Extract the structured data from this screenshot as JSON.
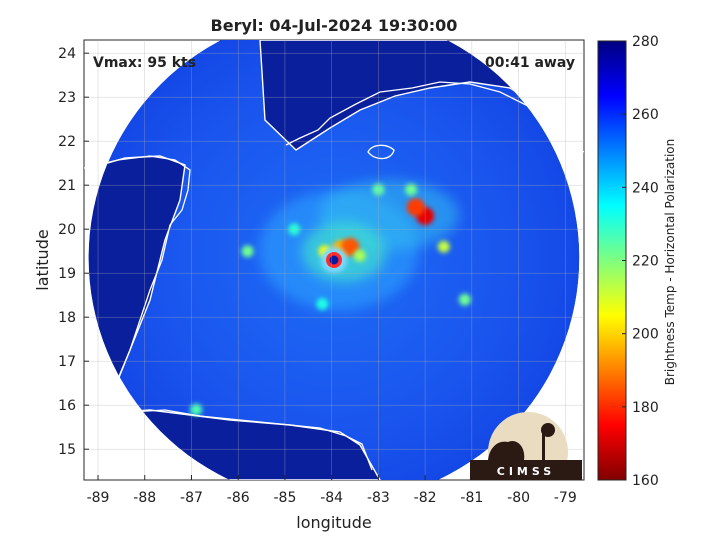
{
  "chart_data": {
    "type": "heatmap",
    "title": "Beryl: 04-Jul-2024 19:30:00",
    "xlabel": "longitude",
    "ylabel": "latitude",
    "xlim": [
      -89.3,
      -78.6
    ],
    "ylim": [
      14.3,
      24.3
    ],
    "x_ticks": [
      -89,
      -88,
      -87,
      -86,
      -85,
      -84,
      -83,
      -82,
      -81,
      -80,
      -79
    ],
    "y_ticks": [
      15,
      16,
      17,
      18,
      19,
      20,
      21,
      22,
      23,
      24
    ],
    "grid": true,
    "annotations": {
      "vmax": "Vmax: 95 kts",
      "offset": "00:41 away"
    },
    "colorbar": {
      "label": "Brightness Temp - Horizontal Polarization",
      "range": [
        160,
        280
      ],
      "ticks": [
        160,
        180,
        200,
        220,
        240,
        260,
        280
      ],
      "colormap": "jet"
    },
    "swath": {
      "center_lon": -83.95,
      "center_lat": 19.35,
      "radius_deg": 5.25
    },
    "storm_center": {
      "lon": -83.95,
      "lat": 19.3
    },
    "features": [
      {
        "lon": -83.8,
        "lat": 19.55,
        "tb": 196
      },
      {
        "lon": -83.6,
        "lat": 19.6,
        "tb": 185
      },
      {
        "lon": -84.15,
        "lat": 19.5,
        "tb": 205
      },
      {
        "lon": -83.4,
        "lat": 19.4,
        "tb": 215
      },
      {
        "lon": -82.0,
        "lat": 20.3,
        "tb": 172
      },
      {
        "lon": -82.2,
        "lat": 20.5,
        "tb": 182
      },
      {
        "lon": -81.6,
        "lat": 19.6,
        "tb": 212
      },
      {
        "lon": -81.15,
        "lat": 18.4,
        "tb": 222
      },
      {
        "lon": -85.8,
        "lat": 19.5,
        "tb": 222
      },
      {
        "lon": -83.0,
        "lat": 20.9,
        "tb": 224
      },
      {
        "lon": -84.8,
        "lat": 20.0,
        "tb": 230
      },
      {
        "lon": -84.2,
        "lat": 18.3,
        "tb": 232
      },
      {
        "lon": -86.9,
        "lat": 15.9,
        "tb": 226
      },
      {
        "lon": -82.3,
        "lat": 20.9,
        "tb": 222
      }
    ]
  },
  "logo": {
    "text": "CIMSS"
  }
}
